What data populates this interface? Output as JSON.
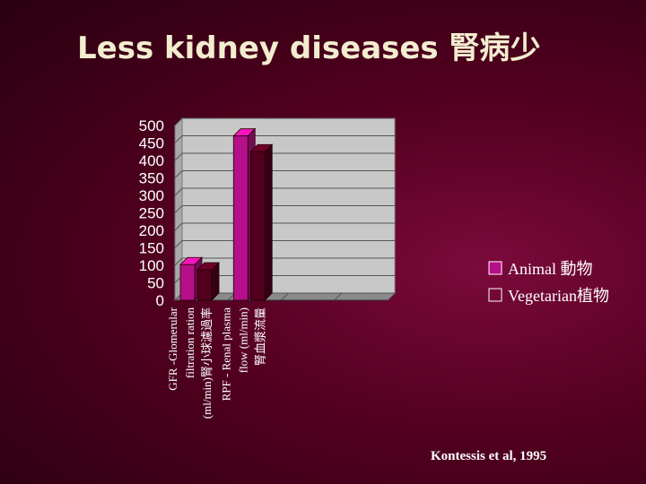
{
  "slide": {
    "title": "Less kidney diseases 腎病少",
    "citation": "Kontessis et al, 1995"
  },
  "colors": {
    "animal": "#b5108a",
    "vegetarian": "#52001f",
    "plot_bg": "#c8c8c8"
  },
  "chart_data": {
    "type": "bar",
    "title": "Less kidney diseases 腎病少",
    "categories": [
      [
        "GFR -Glomerular",
        "filtration ration",
        "(ml/min)腎小球濾過率"
      ],
      [
        "RPF - Renal plasma",
        "flow (ml/min)",
        "腎血漿流量"
      ],
      [],
      []
    ],
    "series": [
      {
        "name": "Animal 動物",
        "values": [
          102,
          470,
          null,
          null
        ]
      },
      {
        "name": "Vegetarian植物",
        "values": [
          87,
          425,
          null,
          null
        ]
      }
    ],
    "ylim": [
      0,
      500
    ],
    "yticks": [
      "0",
      "50",
      "100",
      "150",
      "200",
      "250",
      "300",
      "350",
      "400",
      "450",
      "500"
    ],
    "grid": true,
    "legend_position": "right",
    "style": "3d"
  }
}
